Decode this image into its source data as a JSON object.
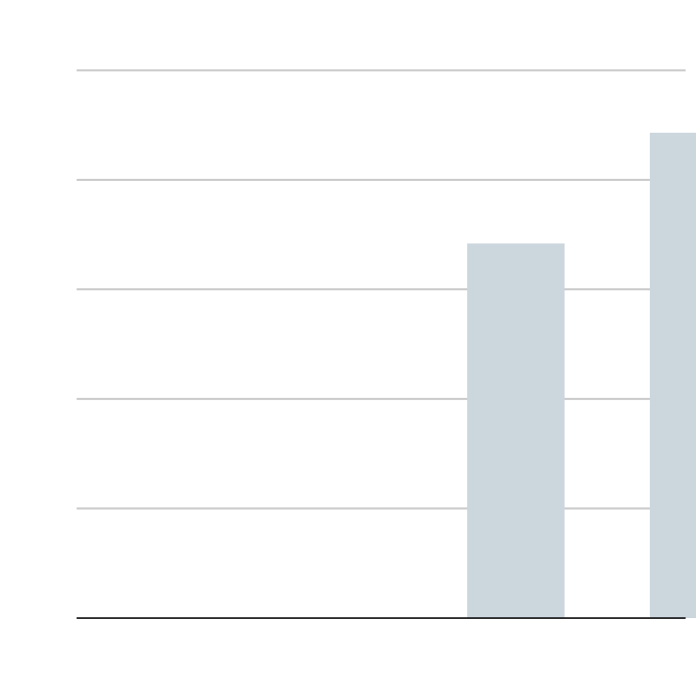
{
  "chart_data": {
    "type": "bar",
    "categories": [
      "",
      "",
      "",
      ""
    ],
    "values": [
      0,
      0,
      3.42,
      4.43
    ],
    "ylim": [
      0,
      5
    ],
    "yticks": [
      0,
      1,
      2,
      3,
      4,
      5
    ],
    "grid": true,
    "legend": "none",
    "title": "",
    "xlabel": "",
    "ylabel": ""
  },
  "colors": {
    "bar": "#ccd6dd",
    "grid": "#cccccc",
    "axis": "#111111",
    "background": "#ffffff"
  }
}
